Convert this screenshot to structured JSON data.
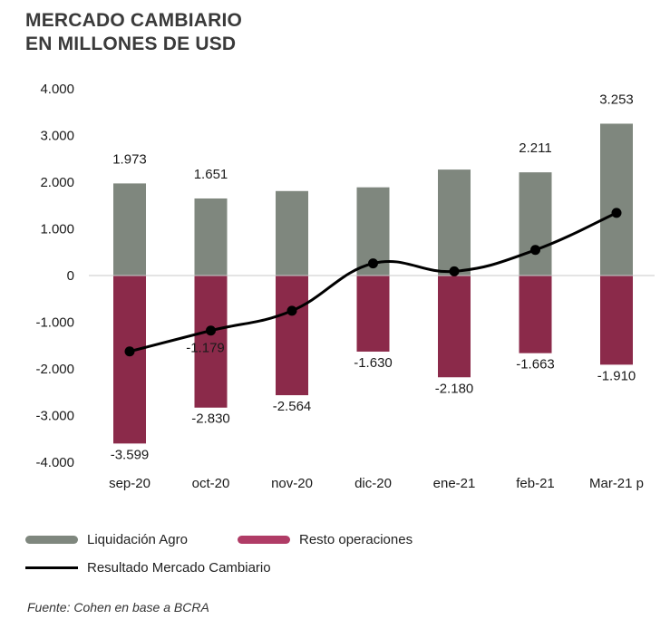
{
  "header": {
    "title": "MERCADO CAMBIARIO",
    "subtitle": "EN MILLONES DE USD"
  },
  "colors": {
    "agro": "#7f877e",
    "resto": "#8b2a4a",
    "resto_legend": "#b03c66",
    "line": "#000000"
  },
  "chart_data": {
    "type": "bar",
    "categories": [
      "sep-20",
      "oct-20",
      "nov-20",
      "dic-20",
      "ene-21",
      "feb-21",
      "Mar-21 p"
    ],
    "series": [
      {
        "name": "Liquidación Agro",
        "type": "bar",
        "values": [
          1973,
          1651,
          1810,
          1890,
          2270,
          2211,
          3253
        ],
        "labels": [
          "1.973",
          "1.651",
          "",
          "",
          "",
          "2.211",
          "3.253"
        ]
      },
      {
        "name": "Resto operaciones",
        "type": "bar",
        "values": [
          -3599,
          -2830,
          -2564,
          -1630,
          -2180,
          -1663,
          -1910
        ],
        "labels": [
          "-3.599",
          "-2.830",
          "-2.564",
          "-1.630",
          "-2.180",
          "-1.663",
          "-1.910"
        ]
      },
      {
        "name": "Resultado Mercado Cambiario",
        "type": "line",
        "values": [
          -1626,
          -1179,
          -754,
          260,
          90,
          548,
          1343
        ],
        "labels": [
          "",
          "-1.179",
          "",
          "",
          "",
          "",
          ""
        ]
      }
    ],
    "ylim": [
      -4000,
      4000
    ],
    "yticks": [
      4000,
      3000,
      2000,
      1000,
      0,
      -1000,
      -2000,
      -3000,
      -4000
    ],
    "ytick_labels": [
      "4.000",
      "3.000",
      "2.000",
      "1.000",
      "0",
      "-1.000",
      "-2.000",
      "-3.000",
      "-4.000"
    ],
    "legend_position": "bottom-left",
    "grid": false
  },
  "legend": {
    "agro": "Liquidación Agro",
    "resto": "Resto operaciones",
    "line": "Resultado Mercado Cambiario"
  },
  "footer": {
    "source": "Fuente: Cohen en base a BCRA"
  }
}
